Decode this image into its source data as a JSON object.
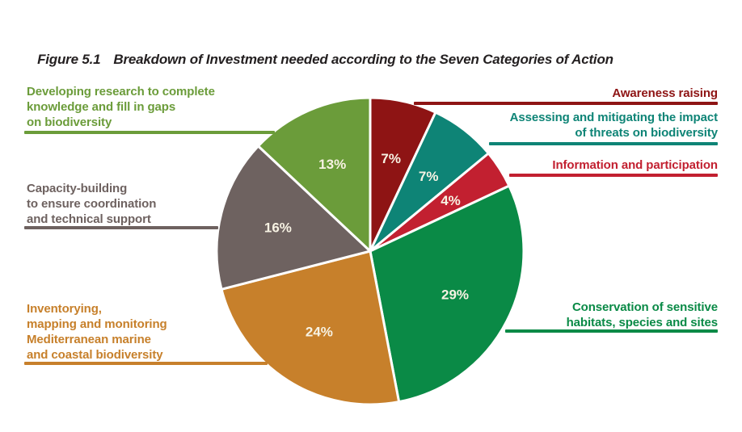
{
  "figure": {
    "prefix": "Figure 5.1",
    "title": "Breakdown of Investment needed according to the Seven Categories of Action"
  },
  "chart_data": {
    "type": "pie",
    "title": "Breakdown of Investment needed according to the Seven Categories of Action",
    "direction": "clockwise",
    "start_angle_deg": 0,
    "units": "percent",
    "total": 100,
    "value_label_color": "#f7f2e3",
    "slices": [
      {
        "id": "awareness-raising",
        "label": "Awareness raising",
        "lines": [
          "Awareness raising"
        ],
        "value": 7,
        "pct_label": "7%",
        "color": "#8e1414"
      },
      {
        "id": "assessing-threats",
        "label": "Assessing and mitigating the impact of threats on biodiversity",
        "lines": [
          "Assessing and mitigating the impact",
          "of threats on biodiversity"
        ],
        "value": 7,
        "pct_label": "7%",
        "color": "#0e8476"
      },
      {
        "id": "information-participation",
        "label": "Information and participation",
        "lines": [
          "Information and participation"
        ],
        "value": 4,
        "pct_label": "4%",
        "color": "#c22030"
      },
      {
        "id": "conservation-habitats",
        "label": "Conservation of sensitive habitats, species and sites",
        "lines": [
          "Conservation of sensitive",
          "habitats, species and sites"
        ],
        "value": 29,
        "pct_label": "29%",
        "color": "#0a8a46"
      },
      {
        "id": "inventorying-mapping",
        "label": "Inventorying, mapping and monitoring Mediterranean marine and coastal biodiversity",
        "lines": [
          "Inventorying,",
          "mapping and monitoring",
          "Mediterranean marine",
          "and coastal biodiversity"
        ],
        "value": 24,
        "pct_label": "24%",
        "color": "#c7802b"
      },
      {
        "id": "capacity-building",
        "label": "Capacity-building to ensure coordination and technical support",
        "lines": [
          "Capacity-building",
          "to ensure coordination",
          "and technical support"
        ],
        "value": 16,
        "pct_label": "16%",
        "color": "#6e6260"
      },
      {
        "id": "developing-research",
        "label": "Developing research to complete knowledge and fill in gaps on biodiversity",
        "lines": [
          "Developing research to complete",
          "knowledge and fill in gaps",
          "on biodiversity"
        ],
        "value": 13,
        "pct_label": "13%",
        "color": "#6b9c3a"
      }
    ]
  }
}
